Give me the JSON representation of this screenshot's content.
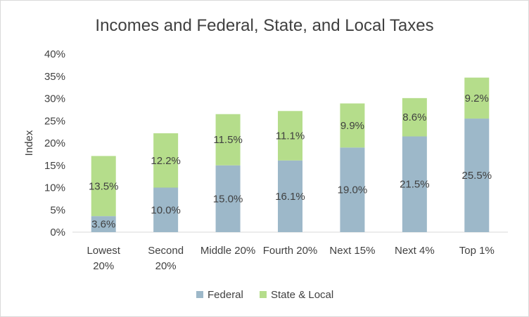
{
  "chart_data": {
    "type": "bar",
    "stacked": true,
    "title": "Incomes and Federal, State, and Local Taxes",
    "xlabel": "",
    "ylabel": "Index",
    "ylim": [
      0,
      40
    ],
    "yticks": [
      "0%",
      "5%",
      "10%",
      "15%",
      "20%",
      "25%",
      "30%",
      "35%",
      "40%"
    ],
    "categories": [
      [
        "Lowest",
        "20%"
      ],
      [
        "Second",
        "20%"
      ],
      [
        "Middle 20%"
      ],
      [
        "Fourth 20%"
      ],
      [
        "Next 15%"
      ],
      [
        "Next 4%"
      ],
      [
        "Top 1%"
      ]
    ],
    "series": [
      {
        "name": "Federal",
        "color": "#9db8c9",
        "values": [
          3.6,
          10.0,
          15.0,
          16.1,
          19.0,
          21.5,
          25.5
        ],
        "labels": [
          "3.6%",
          "10.0%",
          "15.0%",
          "16.1%",
          "19.0%",
          "21.5%",
          "25.5%"
        ]
      },
      {
        "name": "State & Local",
        "color": "#b5dd8b",
        "values": [
          13.5,
          12.2,
          11.5,
          11.1,
          9.9,
          8.6,
          9.2
        ],
        "labels": [
          "13.5%",
          "12.2%",
          "11.5%",
          "11.1%",
          "9.9%",
          "8.6%",
          "9.2%"
        ]
      }
    ],
    "grid": false,
    "legend": "bottom"
  }
}
